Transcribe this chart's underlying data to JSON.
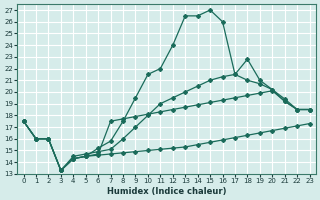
{
  "xlabel": "Humidex (Indice chaleur)",
  "background_color": "#d6ecea",
  "grid_color": "#ffffff",
  "line_color": "#1a6b5a",
  "xlim": [
    -0.5,
    23.5
  ],
  "ylim": [
    13,
    27.5
  ],
  "yticks": [
    13,
    14,
    15,
    16,
    17,
    18,
    19,
    20,
    21,
    22,
    23,
    24,
    25,
    26,
    27
  ],
  "xticks": [
    0,
    1,
    2,
    3,
    4,
    5,
    6,
    7,
    8,
    9,
    10,
    11,
    12,
    13,
    14,
    15,
    16,
    17,
    18,
    19,
    20,
    21,
    22,
    23
  ],
  "lines": [
    {
      "x": [
        0,
        1,
        2,
        3,
        4,
        5,
        6,
        7,
        8,
        9,
        10,
        11,
        12,
        13,
        14,
        15,
        16,
        17,
        18,
        19,
        20,
        21,
        22,
        23
      ],
      "y": [
        17.5,
        16.0,
        16.0,
        13.3,
        14.3,
        14.5,
        15.2,
        15.8,
        17.5,
        19.5,
        21.5,
        22.0,
        24.0,
        26.5,
        26.5,
        27.0,
        26.0,
        21.5,
        22.8,
        21.0,
        20.2,
        19.2,
        18.5,
        18.5
      ]
    },
    {
      "x": [
        0,
        1,
        2,
        3,
        4,
        5,
        6,
        7,
        8,
        9,
        10,
        11,
        12,
        13,
        14,
        15,
        16,
        17,
        18,
        19,
        20,
        21,
        22,
        23
      ],
      "y": [
        17.5,
        16.0,
        16.0,
        13.3,
        14.5,
        14.7,
        14.9,
        15.1,
        16.0,
        17.0,
        18.0,
        19.0,
        19.5,
        20.0,
        20.5,
        21.0,
        21.3,
        21.5,
        21.0,
        20.7,
        20.2,
        19.4,
        18.5,
        18.5
      ]
    },
    {
      "x": [
        0,
        1,
        2,
        3,
        4,
        5,
        6,
        7,
        8,
        9,
        10,
        11,
        12,
        13,
        14,
        15,
        16,
        17,
        18,
        19,
        20,
        21,
        22,
        23
      ],
      "y": [
        17.5,
        16.0,
        16.0,
        13.3,
        14.3,
        14.5,
        14.7,
        17.5,
        17.7,
        17.9,
        18.1,
        18.3,
        18.5,
        18.7,
        18.9,
        19.1,
        19.3,
        19.5,
        19.7,
        19.9,
        20.1,
        19.2,
        18.5,
        18.5
      ]
    },
    {
      "x": [
        0,
        1,
        2,
        3,
        4,
        5,
        6,
        7,
        8,
        9,
        10,
        11,
        12,
        13,
        14,
        15,
        16,
        17,
        18,
        19,
        20,
        21,
        22,
        23
      ],
      "y": [
        17.5,
        16.0,
        16.0,
        13.3,
        14.3,
        14.5,
        14.6,
        14.7,
        14.8,
        14.9,
        15.0,
        15.1,
        15.2,
        15.3,
        15.5,
        15.7,
        15.9,
        16.1,
        16.3,
        16.5,
        16.7,
        16.9,
        17.1,
        17.3
      ]
    }
  ],
  "marker": "D",
  "markersize": 2.0,
  "linewidth": 0.9
}
